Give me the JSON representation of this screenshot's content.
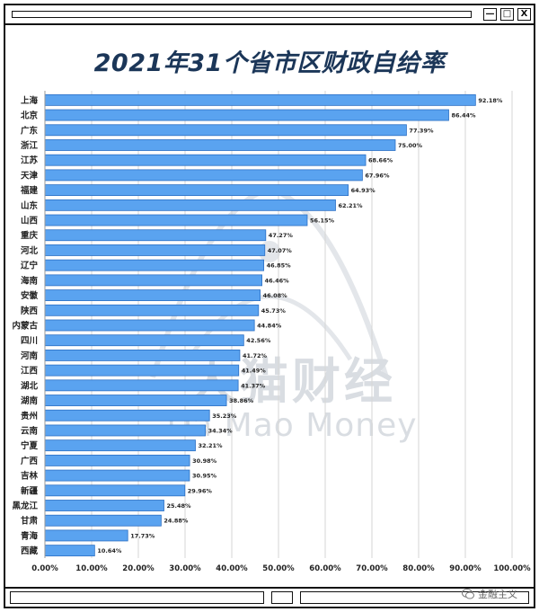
{
  "window": {
    "min_glyph": "—",
    "max_glyph": "□",
    "close_glyph": "X"
  },
  "watermark": {
    "cn": "大猫财经",
    "en": "Da Mao Money"
  },
  "credit": "金融主义",
  "chart_data": {
    "type": "bar",
    "orientation": "horizontal",
    "title": "2021年31个省市区财政自给率",
    "categories": [
      "上海",
      "北京",
      "广东",
      "浙江",
      "江苏",
      "天津",
      "福建",
      "山东",
      "山西",
      "重庆",
      "河北",
      "辽宁",
      "海南",
      "安徽",
      "陕西",
      "内蒙古",
      "四川",
      "河南",
      "江西",
      "湖北",
      "湖南",
      "贵州",
      "云南",
      "宁夏",
      "广西",
      "吉林",
      "新疆",
      "黑龙江",
      "甘肃",
      "青海",
      "西藏"
    ],
    "values": [
      92.18,
      86.44,
      77.39,
      75.0,
      68.66,
      67.96,
      64.93,
      62.21,
      56.15,
      47.27,
      47.07,
      46.85,
      46.46,
      46.08,
      45.73,
      44.84,
      42.56,
      41.72,
      41.49,
      41.37,
      38.86,
      35.23,
      34.34,
      32.21,
      30.98,
      30.95,
      29.96,
      25.48,
      24.88,
      17.73,
      10.64
    ],
    "value_labels": [
      "92.18%",
      "86.44%",
      "77.39%",
      "75.00%",
      "68.66%",
      "67.96%",
      "64.93%",
      "62.21%",
      "56.15%",
      "47.27%",
      "47.07%",
      "46.85%",
      "46.46%",
      "46.08%",
      "45.73%",
      "44.84%",
      "42.56%",
      "41.72%",
      "41.49%",
      "41.37%",
      "38.86%",
      "35.23%",
      "34.34%",
      "32.21%",
      "30.98%",
      "30.95%",
      "29.96%",
      "25.48%",
      "24.88%",
      "17.73%",
      "10.64%"
    ],
    "xlim": [
      0,
      100
    ],
    "xticks": [
      0,
      10,
      20,
      30,
      40,
      50,
      60,
      70,
      80,
      90,
      100
    ],
    "xtick_labels": [
      "0.00%",
      "10.00%",
      "20.00%",
      "30.00%",
      "40.00%",
      "50.00%",
      "60.00%",
      "70.00%",
      "80.00%",
      "90.00%",
      "100.00%"
    ],
    "grid": true,
    "bar_color": "#5aa3f0",
    "bar_edge_color": "#2b6fc4",
    "grid_color": "#d6d6d6"
  }
}
